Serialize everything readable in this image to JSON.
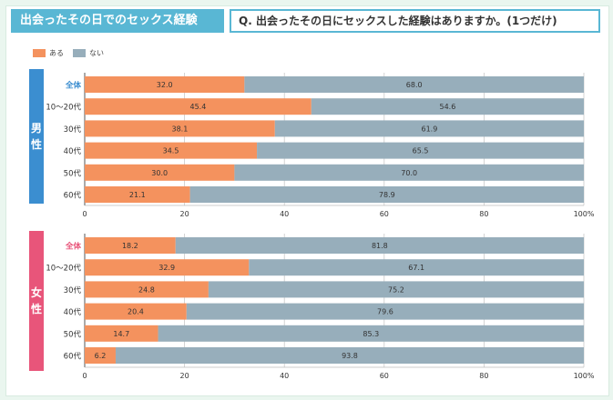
{
  "header": {
    "title": "出会ったその日でのセックス経験",
    "question": "Q. 出会ったその日にセックスした経験はありますか。(1つだけ)"
  },
  "legend": [
    {
      "label": "ある",
      "color": "#f4925e"
    },
    {
      "label": "ない",
      "color": "#97aebb"
    }
  ],
  "groups": {
    "male": {
      "char1": "男",
      "char2": "性",
      "color": "#3b8ed0"
    },
    "female": {
      "char1": "女",
      "char2": "性",
      "color": "#e8557a"
    }
  },
  "chart_data": [
    {
      "type": "bar",
      "orientation": "horizontal",
      "stacked": true,
      "title": "男性",
      "categories": [
        "全体",
        "10〜20代",
        "30代",
        "40代",
        "50代",
        "60代"
      ],
      "series": [
        {
          "name": "ある",
          "values": [
            32.0,
            45.4,
            38.1,
            34.5,
            30.0,
            21.1
          ]
        },
        {
          "name": "ない",
          "values": [
            68.0,
            54.6,
            61.9,
            65.5,
            70.0,
            78.9
          ]
        }
      ],
      "value_labels": [
        [
          "32.0",
          "45.4",
          "38.1",
          "34.5",
          "30.0",
          "21.1"
        ],
        [
          "68.0",
          "54.6",
          "61.9",
          "65.5",
          "70.0",
          "78.9"
        ]
      ],
      "xlim": [
        0,
        100
      ],
      "xticks": [
        "0",
        "20",
        "40",
        "60",
        "80",
        "100%"
      ],
      "highlight_category_color": "#3b8ed0"
    },
    {
      "type": "bar",
      "orientation": "horizontal",
      "stacked": true,
      "title": "女性",
      "categories": [
        "全体",
        "10〜20代",
        "30代",
        "40代",
        "50代",
        "60代"
      ],
      "series": [
        {
          "name": "ある",
          "values": [
            18.2,
            32.9,
            24.8,
            20.4,
            14.7,
            6.2
          ]
        },
        {
          "name": "ない",
          "values": [
            81.8,
            67.1,
            75.2,
            79.6,
            85.3,
            93.8
          ]
        }
      ],
      "value_labels": [
        [
          "18.2",
          "32.9",
          "24.8",
          "20.4",
          "14.7",
          "6.2"
        ],
        [
          "81.8",
          "67.1",
          "75.2",
          "79.6",
          "85.3",
          "93.8"
        ]
      ],
      "xlim": [
        0,
        100
      ],
      "xticks": [
        "0",
        "20",
        "40",
        "60",
        "80",
        "100%"
      ],
      "highlight_category_color": "#e8557a"
    }
  ]
}
